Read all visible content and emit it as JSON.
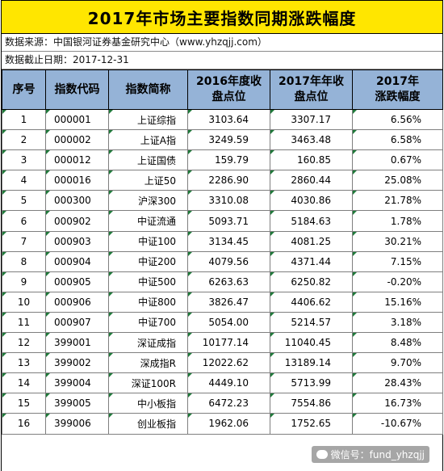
{
  "title": "2017年市场主要指数同期涨跌幅度",
  "source_line": "数据来源：中国银河证券基金研究中心（www.yhzqjj.com）",
  "date_line": "数据截止日期：2017-12-31",
  "headers": {
    "no": "序号",
    "code": "指数代码",
    "name": "指数简称",
    "close2016": "2016年度收盘点位",
    "close2017": "2017年年收盘点位",
    "change2017": "2017年涨跌幅度"
  },
  "rows": [
    {
      "no": "1",
      "code": "000001",
      "name": "上证综指",
      "close2016": "3103.64",
      "close2017": "3307.17",
      "change": "6.56%"
    },
    {
      "no": "2",
      "code": "000002",
      "name": "上证A指",
      "close2016": "3249.59",
      "close2017": "3463.48",
      "change": "6.58%"
    },
    {
      "no": "3",
      "code": "000012",
      "name": "上证国债",
      "close2016": "159.79",
      "close2017": "160.85",
      "change": "0.67%"
    },
    {
      "no": "4",
      "code": "000016",
      "name": "上证50",
      "close2016": "2286.90",
      "close2017": "2860.44",
      "change": "25.08%"
    },
    {
      "no": "5",
      "code": "000300",
      "name": "沪深300",
      "close2016": "3310.08",
      "close2017": "4030.86",
      "change": "21.78%"
    },
    {
      "no": "6",
      "code": "000902",
      "name": "中证流通",
      "close2016": "5093.71",
      "close2017": "5184.63",
      "change": "1.78%"
    },
    {
      "no": "7",
      "code": "000903",
      "name": "中证100",
      "close2016": "3134.45",
      "close2017": "4081.25",
      "change": "30.21%"
    },
    {
      "no": "8",
      "code": "000904",
      "name": "中证200",
      "close2016": "4079.56",
      "close2017": "4371.44",
      "change": "7.15%"
    },
    {
      "no": "9",
      "code": "000905",
      "name": "中证500",
      "close2016": "6263.63",
      "close2017": "6250.82",
      "change": "-0.20%"
    },
    {
      "no": "10",
      "code": "000906",
      "name": "中证800",
      "close2016": "3826.47",
      "close2017": "4406.62",
      "change": "15.16%"
    },
    {
      "no": "11",
      "code": "000907",
      "name": "中证700",
      "close2016": "5054.00",
      "close2017": "5214.57",
      "change": "3.18%"
    },
    {
      "no": "12",
      "code": "399001",
      "name": "深证成指",
      "close2016": "10177.14",
      "close2017": "11040.45",
      "change": "8.48%"
    },
    {
      "no": "13",
      "code": "399002",
      "name": "深成指R",
      "close2016": "12022.62",
      "close2017": "13189.14",
      "change": "9.70%"
    },
    {
      "no": "14",
      "code": "399004",
      "name": "深证100R",
      "close2016": "4449.10",
      "close2017": "5713.99",
      "change": "28.43%"
    },
    {
      "no": "15",
      "code": "399005",
      "name": "中小板指",
      "close2016": "6472.23",
      "close2017": "7554.86",
      "change": "16.73%"
    },
    {
      "no": "16",
      "code": "399006",
      "name": "创业板指",
      "close2016": "1962.06",
      "close2017": "1752.65",
      "change": "-10.67%"
    }
  ],
  "watermark": "微信号：fund_yhzqjj",
  "colors": {
    "title_bg": "#ffe600",
    "header_bg": "#95b3d7"
  }
}
